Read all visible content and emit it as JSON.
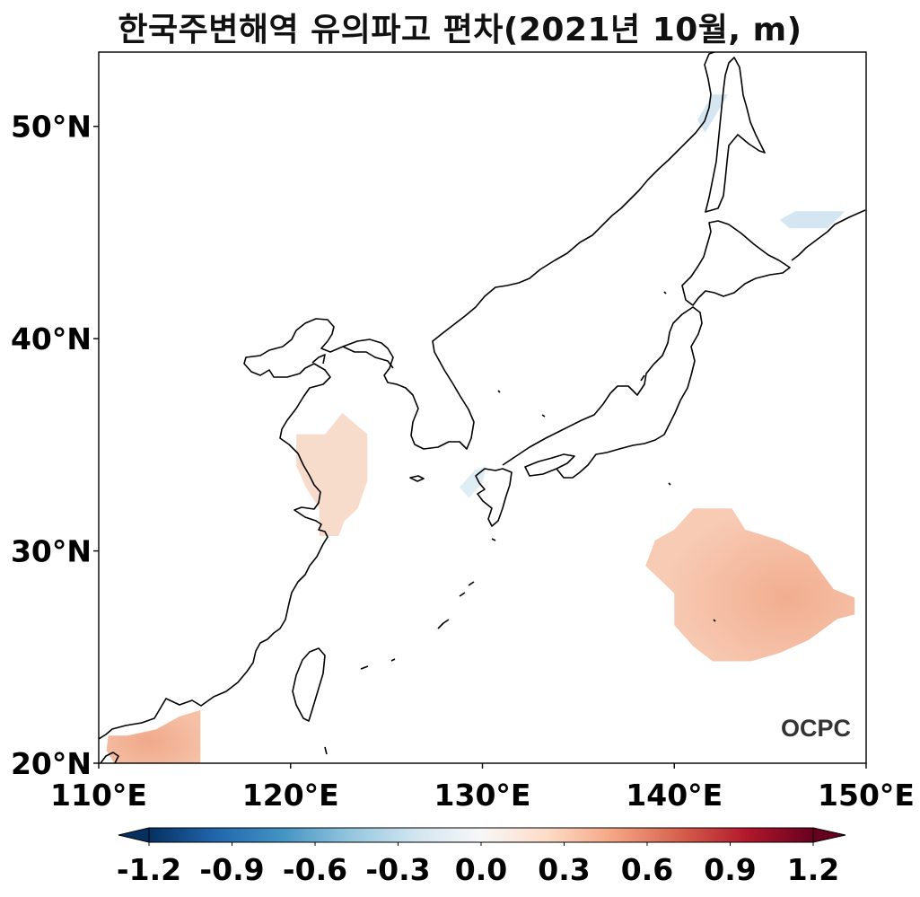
{
  "title": "한국주변해역 유의파고 편차(2021년 10월, m)",
  "logo": "OCPC",
  "map": {
    "lon_range": [
      110,
      150
    ],
    "lat_range": [
      20,
      53.5
    ],
    "lon_ticks": [
      {
        "value": 110,
        "label": "110°E"
      },
      {
        "value": 120,
        "label": "120°E"
      },
      {
        "value": 130,
        "label": "130°E"
      },
      {
        "value": 140,
        "label": "140°E"
      },
      {
        "value": 150,
        "label": "150°E"
      }
    ],
    "lat_ticks": [
      {
        "value": 20,
        "label": "20°N"
      },
      {
        "value": 30,
        "label": "30°N"
      },
      {
        "value": 40,
        "label": "40°N"
      },
      {
        "value": 50,
        "label": "50°N"
      }
    ]
  },
  "anomaly_regions": [
    {
      "name": "yellow-sea-positive",
      "value": 0.15,
      "color": "#f8dccb",
      "polygon": [
        [
          120.3,
          35.5
        ],
        [
          121.8,
          35.5
        ],
        [
          122.7,
          36.5
        ],
        [
          124,
          35.5
        ],
        [
          124,
          33.3
        ],
        [
          123.5,
          32
        ],
        [
          122.8,
          31.4
        ],
        [
          122.5,
          30.7
        ],
        [
          121.5,
          30.7
        ],
        [
          121.5,
          32
        ],
        [
          120.8,
          33
        ],
        [
          120.3,
          34
        ]
      ]
    },
    {
      "name": "east-philippine-sea-positive",
      "value": 0.35,
      "color": "#f5c1a8",
      "polygon": [
        [
          141,
          32
        ],
        [
          143,
          32
        ],
        [
          143.7,
          31
        ],
        [
          145.5,
          30.5
        ],
        [
          147,
          29.8
        ],
        [
          148.3,
          28.2
        ],
        [
          149.4,
          27.8
        ],
        [
          149.4,
          27
        ],
        [
          148.5,
          26.8
        ],
        [
          147,
          25.8
        ],
        [
          145.5,
          25.2
        ],
        [
          144,
          24.8
        ],
        [
          142,
          24.8
        ],
        [
          141,
          25.5
        ],
        [
          140,
          26.5
        ],
        [
          140,
          28
        ],
        [
          138.5,
          29.3
        ],
        [
          139,
          30.5
        ],
        [
          140,
          31
        ]
      ]
    },
    {
      "name": "south-china-sea-positive",
      "value": 0.3,
      "color": "#f3b79c",
      "polygon": [
        [
          110.5,
          21.3
        ],
        [
          111.5,
          21.3
        ],
        [
          113,
          21.6
        ],
        [
          114.2,
          22.2
        ],
        [
          115.3,
          22.5
        ],
        [
          115.3,
          20
        ],
        [
          110.8,
          20
        ],
        [
          110.4,
          20.6
        ]
      ]
    },
    {
      "name": "okhotsk-negative",
      "value": -0.1,
      "color": "#d4e6f1",
      "polygon": [
        [
          141.2,
          50.3
        ],
        [
          142,
          51.5
        ],
        [
          142.8,
          51.5
        ],
        [
          142.2,
          50.6
        ],
        [
          141.6,
          49.7
        ]
      ]
    },
    {
      "name": "kuril-negative",
      "value": -0.1,
      "color": "#d4e6f1",
      "polygon": [
        [
          145.5,
          45.6
        ],
        [
          146.3,
          46
        ],
        [
          148.9,
          46
        ],
        [
          148,
          45.2
        ],
        [
          146,
          45.2
        ]
      ]
    },
    {
      "name": "tsushima-negative",
      "value": -0.05,
      "color": "#dfedf5",
      "polygon": [
        [
          128.8,
          33
        ],
        [
          129.6,
          33.8
        ],
        [
          130.2,
          34
        ],
        [
          130,
          33.2
        ],
        [
          129.3,
          32.5
        ]
      ]
    }
  ],
  "colorbar": {
    "ticks": [
      "-1.2",
      "-0.9",
      "-0.6",
      "-0.3",
      "0.0",
      "0.3",
      "0.6",
      "0.9",
      "1.2"
    ],
    "range": [
      -1.2,
      1.2
    ],
    "extend": "both",
    "colormap": "RdBu_r",
    "colors": [
      "#053061",
      "#2166ac",
      "#4393c3",
      "#92c5de",
      "#d1e5f0",
      "#f7f7f7",
      "#fddbc7",
      "#f4a582",
      "#d6604d",
      "#b2182b",
      "#67001f"
    ]
  }
}
